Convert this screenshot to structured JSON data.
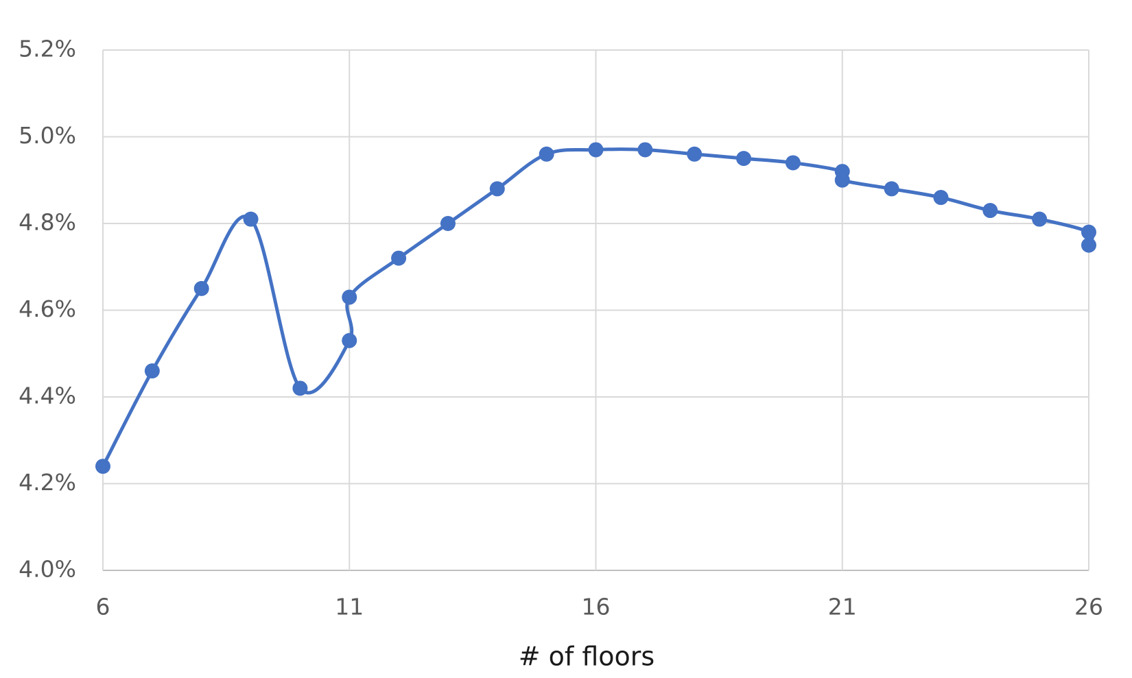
{
  "chart_data": {
    "type": "scatter",
    "xlabel": "# of floors",
    "x": [
      6,
      7,
      8,
      9,
      10,
      11,
      11,
      12,
      13,
      14,
      15,
      16,
      17,
      18,
      19,
      20,
      21,
      21,
      22,
      23,
      24,
      25,
      26,
      26
    ],
    "series": [
      {
        "color": "#4472c4",
        "values": [
          4.24,
          4.46,
          4.65,
          4.81,
          4.42,
          4.53,
          4.63,
          4.72,
          4.8,
          4.88,
          4.96,
          4.97,
          4.97,
          4.96,
          4.95,
          4.94,
          4.92,
          4.9,
          4.88,
          4.86,
          4.83,
          4.81,
          4.78,
          4.75
        ]
      }
    ],
    "xlim": [
      6,
      26
    ],
    "xticks": [
      6,
      11,
      16,
      21,
      26
    ],
    "ylim": [
      4.0,
      5.2
    ],
    "yticks": [
      {
        "value": 4.0,
        "label": "4.0%"
      },
      {
        "value": 4.2,
        "label": "4.2%"
      },
      {
        "value": 4.4,
        "label": "4.4%"
      },
      {
        "value": 4.6,
        "label": "4.6%"
      },
      {
        "value": 4.8,
        "label": "4.8%"
      },
      {
        "value": 5.0,
        "label": "5.0%"
      },
      {
        "value": 5.2,
        "label": "5.2%"
      }
    ],
    "grid": true,
    "smooth": true
  }
}
